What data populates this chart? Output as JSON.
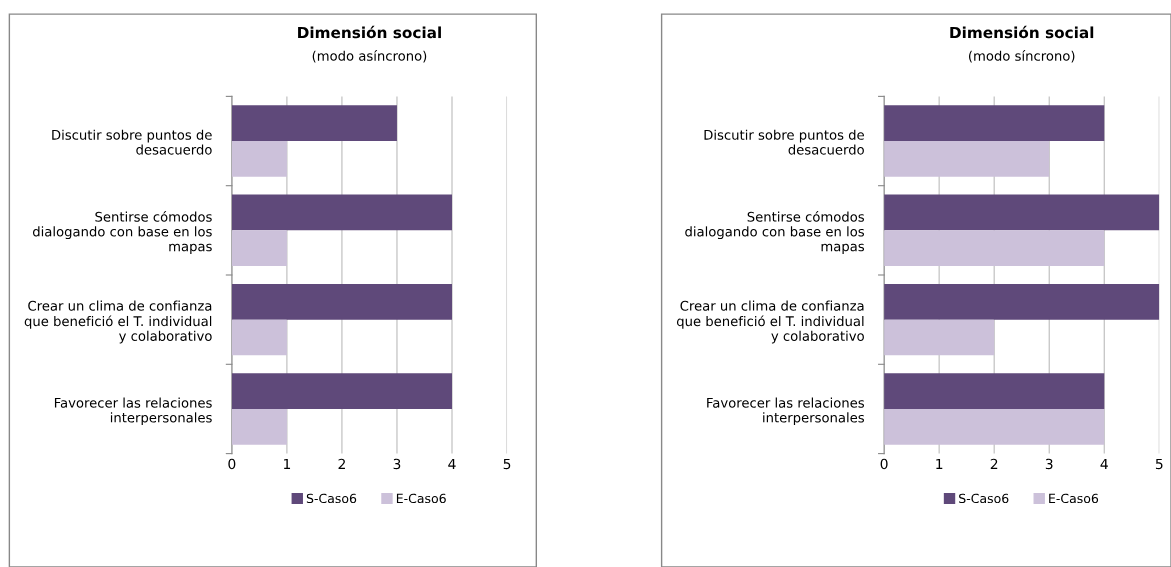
{
  "chart_data": [
    {
      "type": "bar",
      "orientation": "horizontal",
      "title": "Dimensión social",
      "subtitle": "(modo asíncrono)",
      "categories": [
        "Discutir sobre puntos de\ndesacuerdo",
        "Sentirse cómodos\ndialogando con base en los\nmapas",
        "Crear un clima de confianza\nque benefició el T. individual\ny colaborativo",
        "Favorecer las relaciones\ninterpersonales"
      ],
      "series": [
        {
          "name": "S-Caso6",
          "color": "#5f497a",
          "values": [
            3,
            4,
            4,
            4
          ]
        },
        {
          "name": "E-Caso6",
          "color": "#ccc1da",
          "values": [
            1,
            1,
            1,
            1
          ]
        }
      ],
      "xlim": [
        0,
        5
      ],
      "xticks": [
        0,
        1,
        2,
        3,
        4,
        5
      ],
      "grid": "x",
      "legend": "bottom"
    },
    {
      "type": "bar",
      "orientation": "horizontal",
      "title": "Dimensión social",
      "subtitle": "(modo síncrono)",
      "categories": [
        "Discutir sobre puntos de\ndesacuerdo",
        "Sentirse cómodos\ndialogando con base en los\nmapas",
        "Crear un clima de confianza\nque benefició el T. individual\ny colaborativo",
        "Favorecer las relaciones\ninterpersonales"
      ],
      "series": [
        {
          "name": "S-Caso6",
          "color": "#5f497a",
          "values": [
            4,
            5,
            5,
            4
          ]
        },
        {
          "name": "E-Caso6",
          "color": "#ccc1da",
          "values": [
            3,
            4,
            2,
            4
          ]
        }
      ],
      "xlim": [
        0,
        5
      ],
      "xticks": [
        0,
        1,
        2,
        3,
        4,
        5
      ],
      "grid": "x",
      "legend": "bottom"
    }
  ]
}
